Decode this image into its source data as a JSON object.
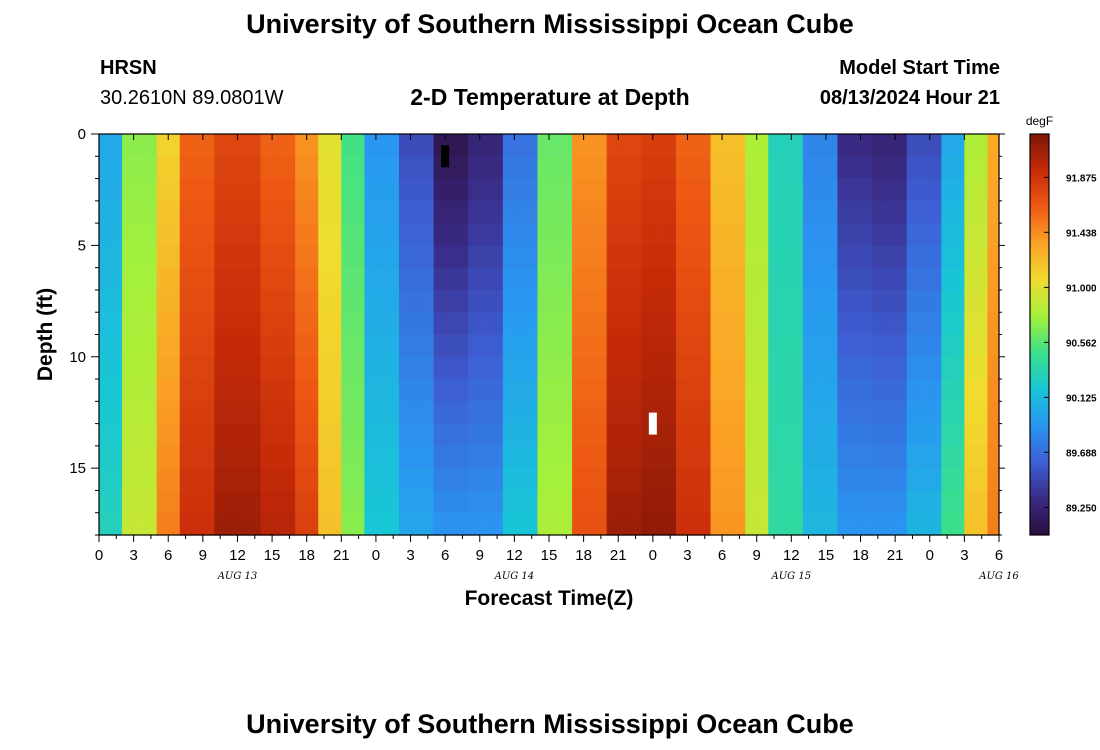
{
  "header": {
    "title": "University of Southern Mississippi Ocean Cube",
    "station_name": "HRSN",
    "station_coords": "30.2610N  89.0801W",
    "plot_title": "2-D Temperature at Depth",
    "model_start_label": "Model Start Time",
    "model_start_value": "08/13/2024 Hour 21"
  },
  "footer": {
    "title": "University of Southern Mississippi Ocean Cube"
  },
  "chart_data": {
    "type": "heatmap",
    "title": "2-D Temperature at Depth",
    "xlabel": "Forecast Time(Z)",
    "ylabel": "Depth (ft)",
    "x_ticks": [
      "0",
      "3",
      "6",
      "9",
      "12",
      "15",
      "18",
      "21",
      "0",
      "3",
      "6",
      "9",
      "12",
      "15",
      "18",
      "21",
      "0",
      "3",
      "6",
      "9",
      "12",
      "15",
      "18",
      "21",
      "0",
      "3",
      "6"
    ],
    "x_date_labels": [
      {
        "label": "AUG 13",
        "hour_offset": 12
      },
      {
        "label": "AUG 14",
        "hour_offset": 36
      },
      {
        "label": "AUG 15",
        "hour_offset": 60
      },
      {
        "label": "AUG 16",
        "hour_offset": 78
      }
    ],
    "x_range_hours": [
      0,
      78
    ],
    "y_ticks": [
      0,
      5,
      10,
      15
    ],
    "ylim": [
      0,
      18
    ],
    "y_inverted": true,
    "colorbar": {
      "unit": "degF",
      "ticks": [
        "91.875",
        "91.438",
        "91.000",
        "90.562",
        "90.125",
        "89.688",
        "89.250"
      ],
      "range": [
        89.03,
        92.22
      ],
      "colors": [
        "#2a0f3c",
        "#3a2a85",
        "#3d5fd6",
        "#2a96f2",
        "#18c6d6",
        "#3ae08c",
        "#a4f03a",
        "#f0dc2e",
        "#fba125",
        "#ee5a14",
        "#c62a08",
        "#7e1608"
      ]
    },
    "temperature_model": {
      "description": "Temperature (degF) by forecast hour and depth",
      "segments": [
        {
          "from_hour": 0,
          "to_hour": 2,
          "surface": 90.0,
          "bottom": 90.3
        },
        {
          "from_hour": 2,
          "to_hour": 5,
          "surface": 90.7,
          "bottom": 90.9
        },
        {
          "from_hour": 5,
          "to_hour": 7,
          "surface": 91.1,
          "bottom": 91.5
        },
        {
          "from_hour": 7,
          "to_hour": 10,
          "surface": 91.6,
          "bottom": 91.9
        },
        {
          "from_hour": 10,
          "to_hour": 14,
          "surface": 91.75,
          "bottom": 92.1
        },
        {
          "from_hour": 14,
          "to_hour": 17,
          "surface": 91.6,
          "bottom": 92.0
        },
        {
          "from_hour": 17,
          "to_hour": 19,
          "surface": 91.4,
          "bottom": 91.8
        },
        {
          "from_hour": 19,
          "to_hour": 21,
          "surface": 91.0,
          "bottom": 91.2
        },
        {
          "from_hour": 21,
          "to_hour": 23,
          "surface": 90.5,
          "bottom": 90.7
        },
        {
          "from_hour": 23,
          "to_hour": 26,
          "surface": 89.9,
          "bottom": 90.2
        },
        {
          "from_hour": 26,
          "to_hour": 29,
          "surface": 89.5,
          "bottom": 90.0
        },
        {
          "from_hour": 29,
          "to_hour": 32,
          "surface": 89.1,
          "bottom": 89.9
        },
        {
          "from_hour": 32,
          "to_hour": 35,
          "surface": 89.25,
          "bottom": 89.9
        },
        {
          "from_hour": 35,
          "to_hour": 38,
          "surface": 89.7,
          "bottom": 90.2
        },
        {
          "from_hour": 38,
          "to_hour": 41,
          "surface": 90.6,
          "bottom": 90.8
        },
        {
          "from_hour": 41,
          "to_hour": 44,
          "surface": 91.4,
          "bottom": 91.7
        },
        {
          "from_hour": 44,
          "to_hour": 47,
          "surface": 91.75,
          "bottom": 92.1
        },
        {
          "from_hour": 47,
          "to_hour": 50,
          "surface": 91.8,
          "bottom": 92.15
        },
        {
          "from_hour": 50,
          "to_hour": 53,
          "surface": 91.6,
          "bottom": 91.9
        },
        {
          "from_hour": 53,
          "to_hour": 56,
          "surface": 91.2,
          "bottom": 91.4
        },
        {
          "from_hour": 56,
          "to_hour": 58,
          "surface": 90.8,
          "bottom": 90.9
        },
        {
          "from_hour": 58,
          "to_hour": 61,
          "surface": 90.3,
          "bottom": 90.4
        },
        {
          "from_hour": 61,
          "to_hour": 64,
          "surface": 89.8,
          "bottom": 90.1
        },
        {
          "from_hour": 64,
          "to_hour": 67,
          "surface": 89.3,
          "bottom": 89.9
        },
        {
          "from_hour": 67,
          "to_hour": 70,
          "surface": 89.25,
          "bottom": 89.9
        },
        {
          "from_hour": 70,
          "to_hour": 73,
          "surface": 89.5,
          "bottom": 90.1
        },
        {
          "from_hour": 73,
          "to_hour": 75,
          "surface": 90.0,
          "bottom": 90.5
        },
        {
          "from_hour": 75,
          "to_hour": 77,
          "surface": 90.8,
          "bottom": 91.2
        },
        {
          "from_hour": 77,
          "to_hour": 78,
          "surface": 91.3,
          "bottom": 91.5
        }
      ]
    },
    "markers": [
      {
        "label": "min",
        "color": "#000000",
        "hour": 30,
        "depth_ft": 1.0
      },
      {
        "label": "max",
        "color": "#ffffff",
        "hour": 48,
        "depth_ft": 13.0
      }
    ]
  }
}
